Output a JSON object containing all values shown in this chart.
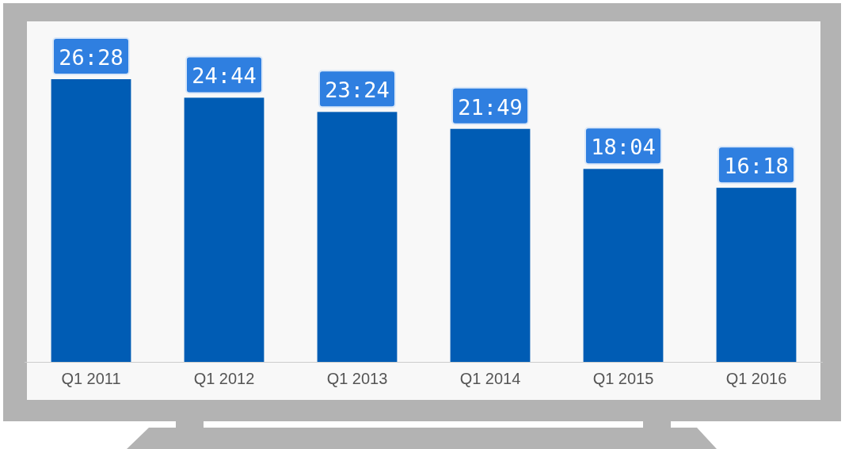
{
  "chart_data": {
    "type": "bar",
    "categories": [
      "Q1 2011",
      "Q1 2012",
      "Q1 2013",
      "Q1 2014",
      "Q1 2015",
      "Q1 2016"
    ],
    "values": [
      26.467,
      24.733,
      23.4,
      21.817,
      18.067,
      16.3
    ],
    "value_labels": [
      "26:28",
      "24:44",
      "23:24",
      "21:49",
      "18:04",
      "16:18"
    ],
    "color": "#005cb4"
  }
}
